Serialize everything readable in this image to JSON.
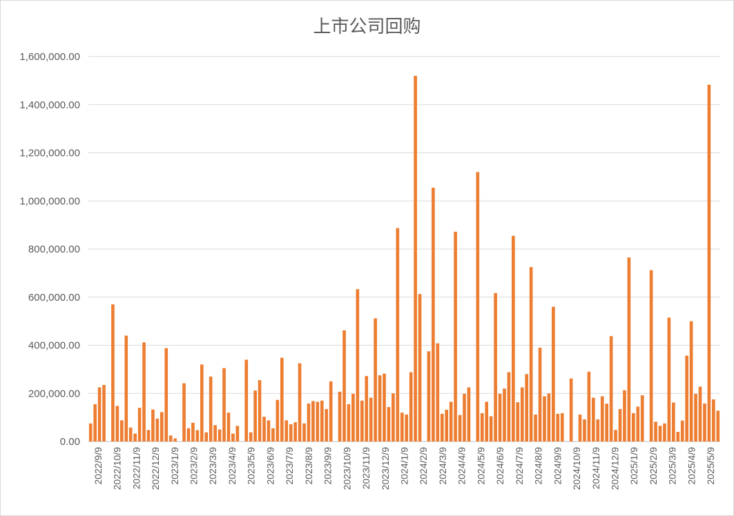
{
  "chart_data": {
    "type": "bar",
    "title": "上市公司回购",
    "xlabel": "",
    "ylabel": "",
    "ylim": [
      0,
      1600000
    ],
    "yticks": [
      "0.00",
      "200,000.00",
      "400,000.00",
      "600,000.00",
      "800,000.00",
      "1,000,000.00",
      "1,200,000.00",
      "1,400,000.00",
      "1,600,000.00"
    ],
    "xtick_labels": [
      "2022/9/9",
      "2022/10/9",
      "2022/11/9",
      "2022/12/9",
      "2023/1/9",
      "2023/2/9",
      "2023/3/9",
      "2023/4/9",
      "2023/5/9",
      "2023/6/9",
      "2023/7/9",
      "2023/8/9",
      "2023/9/9",
      "2023/10/9",
      "2023/11/9",
      "2023/12/9",
      "2024/1/9",
      "2024/2/9",
      "2024/3/9",
      "2024/4/9",
      "2024/5/9",
      "2024/6/9",
      "2024/7/9",
      "2024/8/9",
      "2024/9/9",
      "2024/10/9",
      "2024/11/9",
      "2024/12/9",
      "2025/1/9",
      "2025/2/9",
      "2025/3/9",
      "2025/4/9",
      "2025/5/9"
    ],
    "grid": true,
    "legend": "none",
    "bar_color": "#ED7D31",
    "values": [
      75000,
      155000,
      225000,
      235000,
      null,
      570000,
      148000,
      88000,
      440000,
      58000,
      33000,
      140000,
      412000,
      48000,
      133000,
      95000,
      122000,
      388000,
      25000,
      13000,
      null,
      242000,
      55000,
      78000,
      47000,
      320000,
      38000,
      270000,
      68000,
      50000,
      305000,
      120000,
      33000,
      65000,
      null,
      340000,
      38000,
      212000,
      255000,
      103000,
      88000,
      55000,
      173000,
      348000,
      88000,
      72000,
      80000,
      325000,
      75000,
      158000,
      168000,
      165000,
      170000,
      135000,
      250000,
      null,
      207000,
      462000,
      155000,
      198000,
      633000,
      170000,
      272000,
      182000,
      512000,
      275000,
      282000,
      143000,
      200000,
      887000,
      120000,
      112000,
      288000,
      1520000,
      613000,
      null,
      375000,
      1055000,
      408000,
      115000,
      132000,
      165000,
      872000,
      110000,
      198000,
      225000,
      null,
      1120000,
      118000,
      165000,
      105000,
      617000,
      198000,
      220000,
      288000,
      855000,
      163000,
      225000,
      280000,
      725000,
      112000,
      390000,
      188000,
      200000,
      560000,
      115000,
      118000,
      null,
      262000,
      null,
      112000,
      92000,
      290000,
      182000,
      92000,
      188000,
      157000,
      438000,
      48000,
      135000,
      213000,
      765000,
      118000,
      145000,
      192000,
      null,
      712000,
      82000,
      65000,
      75000,
      515000,
      162000,
      40000,
      87000,
      357000,
      500000,
      198000,
      228000,
      158000,
      1483000,
      175000,
      128000
    ]
  }
}
